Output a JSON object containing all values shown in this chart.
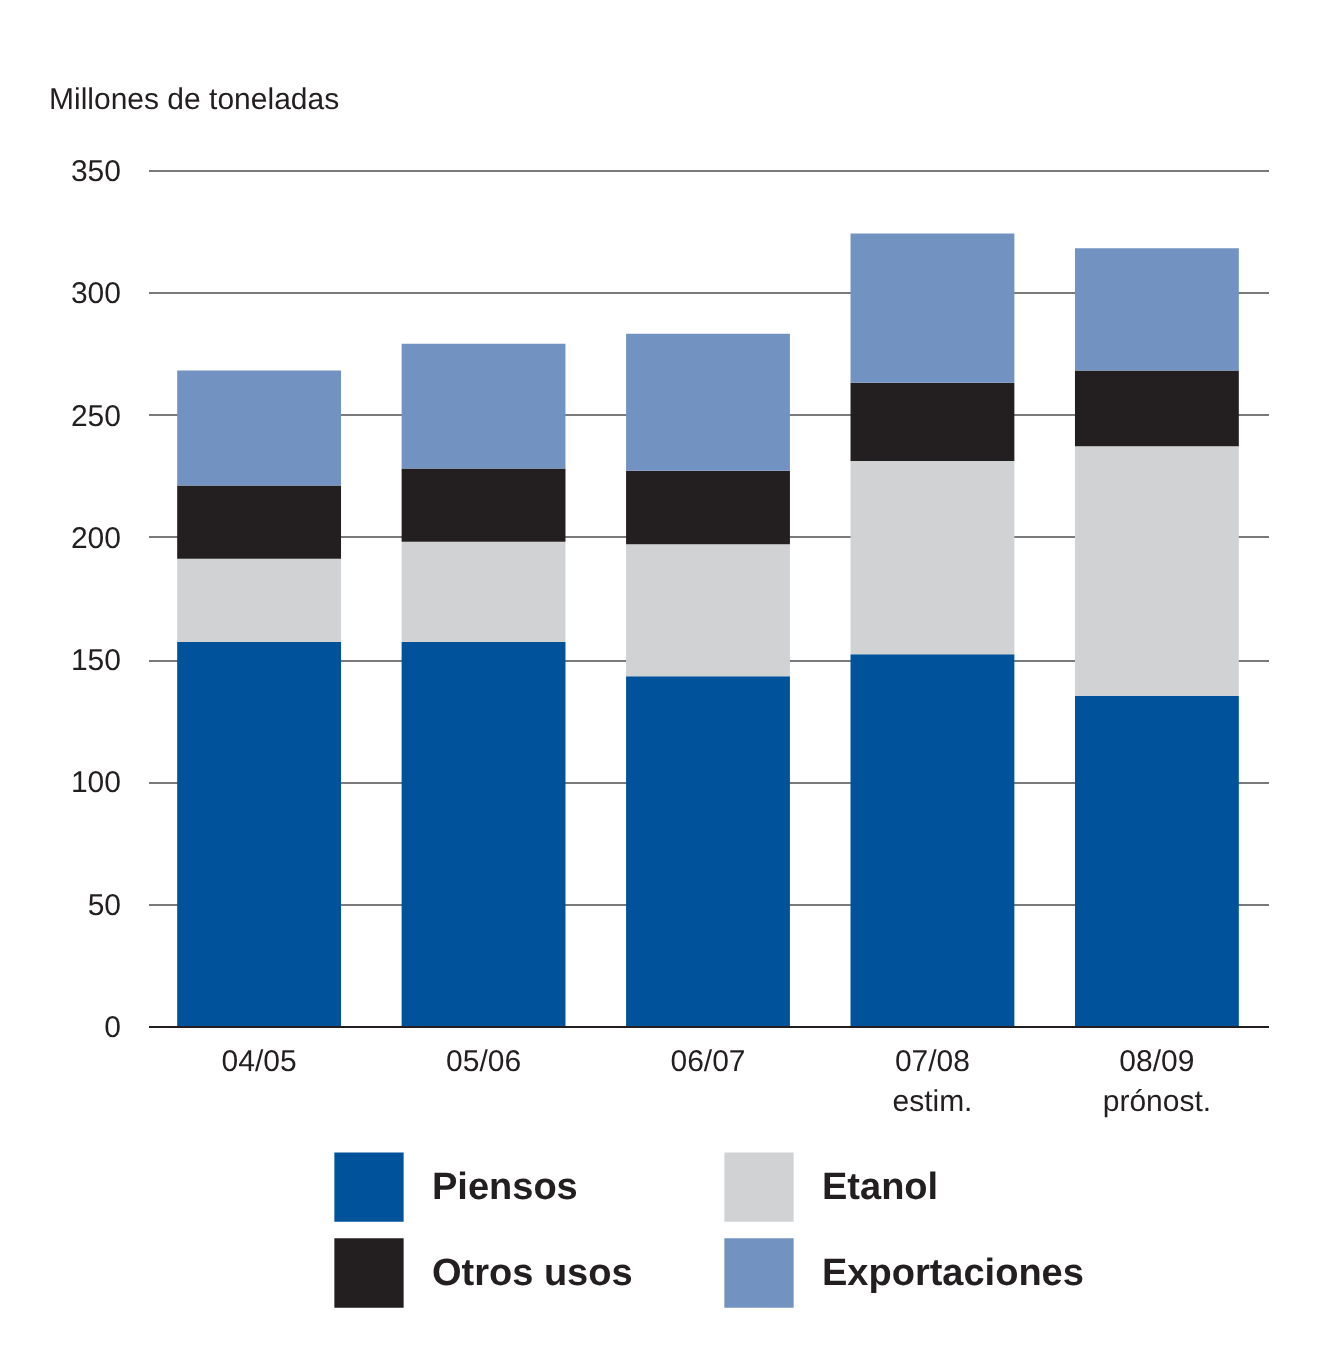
{
  "chart_data": {
    "type": "bar",
    "ylabel": "Millones de toneladas",
    "categories": [
      "04/05",
      "05/06",
      "06/07",
      "07/08\nestim.",
      "08/09\nprónost."
    ],
    "stacked": true,
    "ylim": [
      0,
      350
    ],
    "yticks": [
      0,
      50,
      100,
      150,
      200,
      250,
      300,
      350
    ],
    "grid": "y",
    "legend": "bottom",
    "series": [
      {
        "name": "Piensos",
        "color": "#00539a",
        "values": [
          157,
          157,
          143,
          152,
          135
        ]
      },
      {
        "name": "Etanol",
        "color": "#d1d2d4",
        "values": [
          34,
          41,
          54,
          79,
          102
        ]
      },
      {
        "name": "Otros usos",
        "color": "#231f20",
        "values": [
          30,
          30,
          30,
          32,
          31
        ]
      },
      {
        "name": "Exportaciones",
        "color": "#7293c1",
        "values": [
          47,
          51,
          56,
          61,
          50
        ]
      }
    ]
  }
}
